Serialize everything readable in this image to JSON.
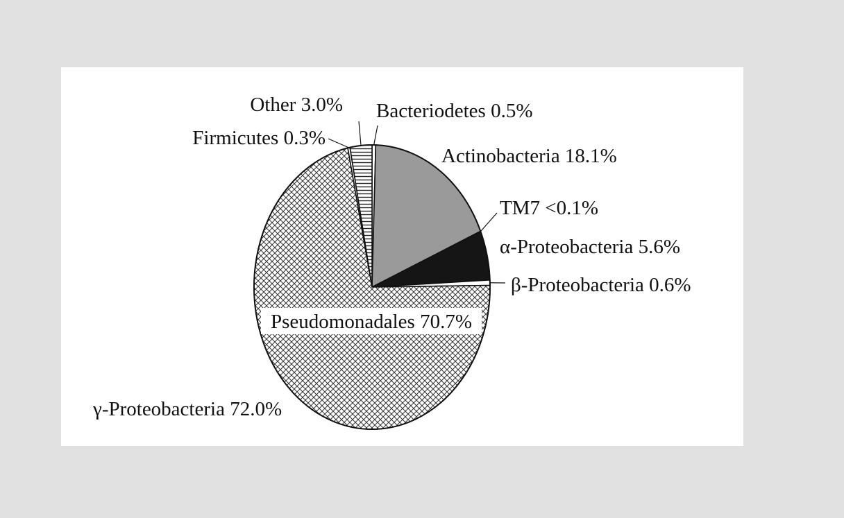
{
  "chart_data": {
    "type": "pie",
    "title": "",
    "slices": [
      {
        "label": "Bacteriodetes 0.5%",
        "value": 0.5,
        "fill": "white"
      },
      {
        "label": "Actinobacteria 18.1%",
        "value": 18.1,
        "fill": "#9a9a9a"
      },
      {
        "label": "TM7 <0.1%",
        "value": 0.05,
        "fill": "white"
      },
      {
        "label": "α-Proteobacteria 5.6%",
        "value": 5.6,
        "fill": "#151515"
      },
      {
        "label": "β-Proteobacteria 0.6%",
        "value": 0.6,
        "fill": "white"
      },
      {
        "label": "γ-Proteobacteria 72.0%",
        "value": 72.0,
        "fill": "crosshatch"
      },
      {
        "label": "Firmicutes 0.3%",
        "value": 0.3,
        "fill": "white"
      },
      {
        "label": "Other 3.0%",
        "value": 3.0,
        "fill": "horizontal-stripes"
      }
    ],
    "inner_annotation": "Pseudomonadales 70.7%"
  }
}
